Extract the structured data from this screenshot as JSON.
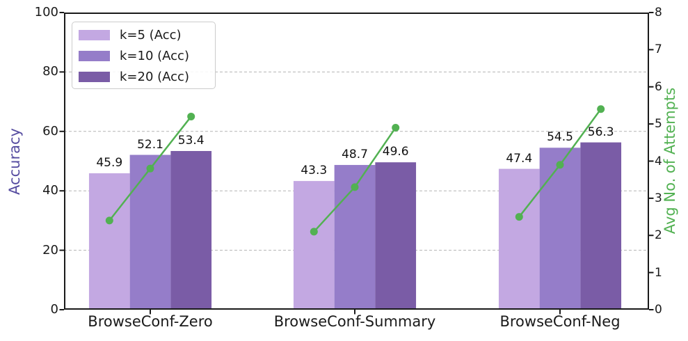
{
  "chart_data": {
    "type": "bar",
    "title": "",
    "categories": [
      "BrowseConf-Zero",
      "BrowseConf-Summary",
      "BrowseConf-Neg"
    ],
    "series": [
      {
        "name": "k=5 (Acc)",
        "values": [
          45.9,
          43.3,
          47.4
        ],
        "color": "#c3a8e2"
      },
      {
        "name": "k=10 (Acc)",
        "values": [
          52.1,
          48.7,
          54.5
        ],
        "color": "#957dc9"
      },
      {
        "name": "k=20 (Acc)",
        "values": [
          53.4,
          49.6,
          56.3
        ],
        "color": "#7a5ca6"
      }
    ],
    "bar_value_labels": [
      [
        "45.9",
        "52.1",
        "53.4"
      ],
      [
        "43.3",
        "48.7",
        "49.6"
      ],
      [
        "47.4",
        "54.5",
        "56.3"
      ]
    ],
    "line_overlay": {
      "name": "Avg No. of Attempts",
      "color": "#52b152",
      "values_per_category": [
        [
          2.4,
          3.8,
          5.2
        ],
        [
          2.1,
          3.3,
          4.9
        ],
        [
          2.5,
          3.9,
          5.4
        ]
      ]
    },
    "axes": {
      "left": {
        "label": "Accuracy",
        "color": "#564ca0",
        "min": 0,
        "max": 100,
        "ticks": [
          "0",
          "20",
          "40",
          "60",
          "80",
          "100"
        ]
      },
      "right": {
        "label": "Avg No. of Attempts",
        "color": "#52b152",
        "min": 0,
        "max": 8,
        "ticks": [
          "0",
          "1",
          "2",
          "3",
          "4",
          "5",
          "6",
          "7",
          "8"
        ]
      }
    },
    "grid": {
      "horizontal": true,
      "style": "dashed",
      "color": "#b3b3b3",
      "at_left_ticks": [
        20,
        40,
        60,
        80
      ]
    },
    "legend": {
      "position": "upper-left"
    },
    "frame_color": "#1a1a1a"
  }
}
